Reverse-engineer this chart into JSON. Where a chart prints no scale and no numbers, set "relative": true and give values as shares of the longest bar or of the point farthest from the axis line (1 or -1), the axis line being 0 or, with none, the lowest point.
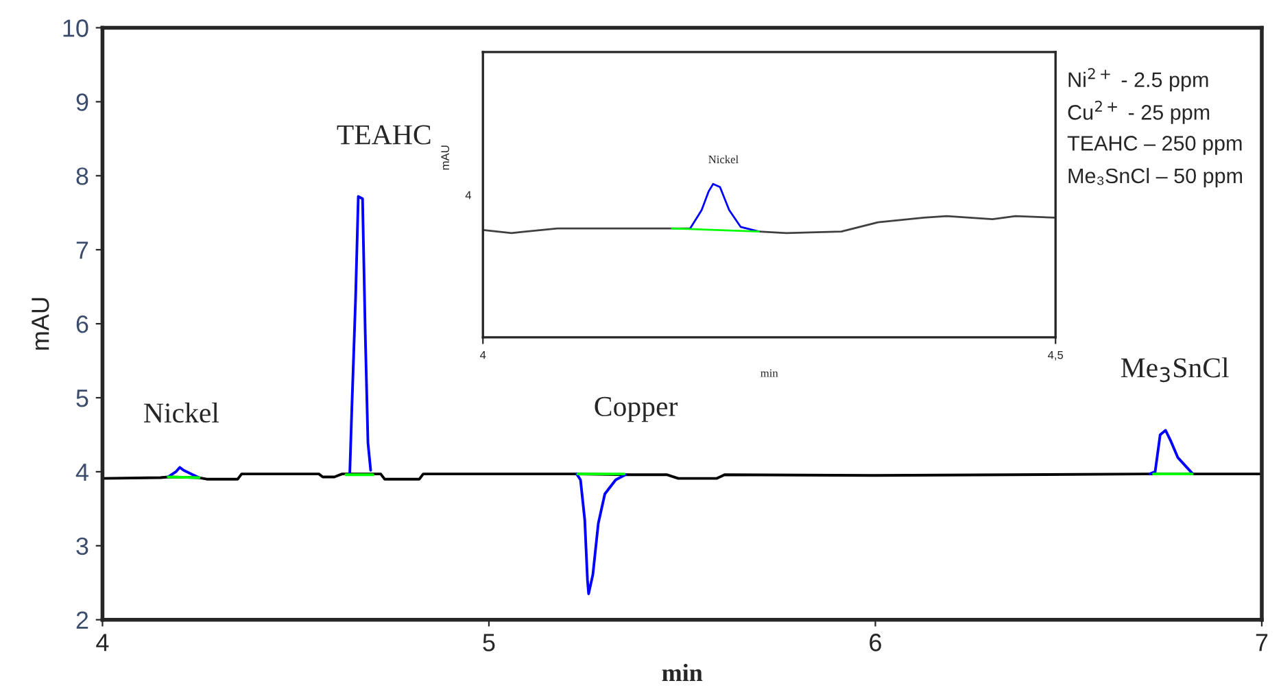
{
  "chart_data": [
    {
      "type": "line",
      "xlabel": "min",
      "ylabel": "mAU",
      "xlim": [
        4,
        7
      ],
      "xticks": [
        4,
        5,
        6,
        7
      ],
      "ylim": [
        2,
        10
      ],
      "yticks": [
        2,
        3,
        4,
        5,
        6,
        7,
        8,
        9,
        10
      ],
      "grid": false,
      "legend": false,
      "series": [
        {
          "color": "#000000",
          "x": [
            4.0,
            4.15,
            4.17,
            4.25,
            4.27,
            4.35,
            4.36,
            4.56,
            4.57,
            4.6,
            4.62,
            4.72,
            4.73,
            4.82,
            4.83,
            5.22,
            5.36,
            5.46,
            5.49,
            5.59,
            5.61,
            6.0,
            6.7,
            6.83,
            7.0
          ],
          "values": [
            3.91,
            3.92,
            3.93,
            3.92,
            3.9,
            3.9,
            3.97,
            3.97,
            3.93,
            3.93,
            3.97,
            3.97,
            3.9,
            3.9,
            3.97,
            3.97,
            3.96,
            3.96,
            3.91,
            3.91,
            3.96,
            3.95,
            3.97,
            3.97,
            3.97
          ]
        },
        {
          "color": "#0000ff",
          "x": [
            4.17,
            4.19,
            4.2,
            4.21,
            4.23,
            4.25
          ],
          "values": [
            3.93,
            4.0,
            4.06,
            4.02,
            3.97,
            3.92
          ]
        },
        {
          "color": "#0000ff",
          "x": [
            4.64,
            4.645,
            4.655,
            4.662,
            4.673,
            4.68,
            4.687,
            4.694
          ],
          "values": [
            3.98,
            4.81,
            6.35,
            7.72,
            7.69,
            5.87,
            4.39,
            4.02
          ]
        },
        {
          "color": "#0000ff",
          "x": [
            5.227,
            5.237,
            5.248,
            5.255,
            5.258,
            5.269,
            5.283,
            5.3,
            5.328,
            5.353
          ],
          "values": [
            3.97,
            3.89,
            3.35,
            2.54,
            2.35,
            2.61,
            3.3,
            3.7,
            3.89,
            3.96
          ]
        },
        {
          "color": "#0000ff",
          "x": [
            6.71,
            6.724,
            6.737,
            6.751,
            6.765,
            6.783,
            6.82
          ],
          "values": [
            3.97,
            4.0,
            4.5,
            4.56,
            4.41,
            4.19,
            3.98
          ]
        },
        {
          "color": "#00ff00",
          "x": [
            4.17,
            4.25
          ],
          "values": [
            3.93,
            3.92
          ]
        },
        {
          "color": "#00ff00",
          "x": [
            4.63,
            4.7
          ],
          "values": [
            3.96,
            3.96
          ]
        },
        {
          "color": "#00ff00",
          "x": [
            5.23,
            5.35
          ],
          "values": [
            3.97,
            3.97
          ]
        },
        {
          "color": "#00ff00",
          "x": [
            6.72,
            6.82
          ],
          "values": [
            3.97,
            3.97
          ]
        }
      ],
      "annotations": [
        "Nickel",
        "TEAHC",
        "Copper",
        "Me$_{3}$SnCl",
        "Ni$^{2+}$ - 2.5 ppm",
        "Cu$^{2+}$ - 25 ppm",
        "TEAHC – 250 ppm",
        "Me₃SnCl – 50 ppm"
      ]
    },
    {
      "type": "line",
      "xlabel": "min",
      "ylabel": "mAU",
      "relative": true,
      "xlim": [
        4,
        4.5
      ],
      "xticks": [
        4,
        {
          "value": 4.5,
          "label": "4,5"
        }
      ],
      "grid": false,
      "legend": false,
      "series": [
        {
          "color": "#404040",
          "x": [
            4.0,
            4.025,
            4.065,
            4.105,
            4.165,
            4.181,
            4.191,
            4.197,
            4.201,
            4.207,
            4.215,
            4.225,
            4.241,
            4.265,
            4.313,
            4.345,
            4.385,
            4.405,
            4.445,
            4.465,
            4.5
          ],
          "values": [
            0.7,
            0.68,
            0.71,
            0.71,
            0.71,
            0.71,
            null,
            null,
            null,
            null,
            null,
            null,
            0.69,
            0.68,
            0.69,
            0.75,
            0.78,
            0.79,
            0.77,
            0.79,
            0.78
          ]
        },
        {
          "color": "#0000ff",
          "x": [
            4.181,
            4.191,
            4.197,
            4.201,
            4.207,
            4.215,
            4.225,
            4.241
          ],
          "values": [
            0.71,
            0.83,
            0.95,
            1.0,
            0.98,
            0.83,
            0.72,
            0.69
          ]
        },
        {
          "color": "#00ff00",
          "x": [
            4.165,
            4.241
          ],
          "values": [
            0.71,
            0.69
          ]
        }
      ],
      "annotations": [
        "Nickel",
        "4"
      ]
    }
  ]
}
